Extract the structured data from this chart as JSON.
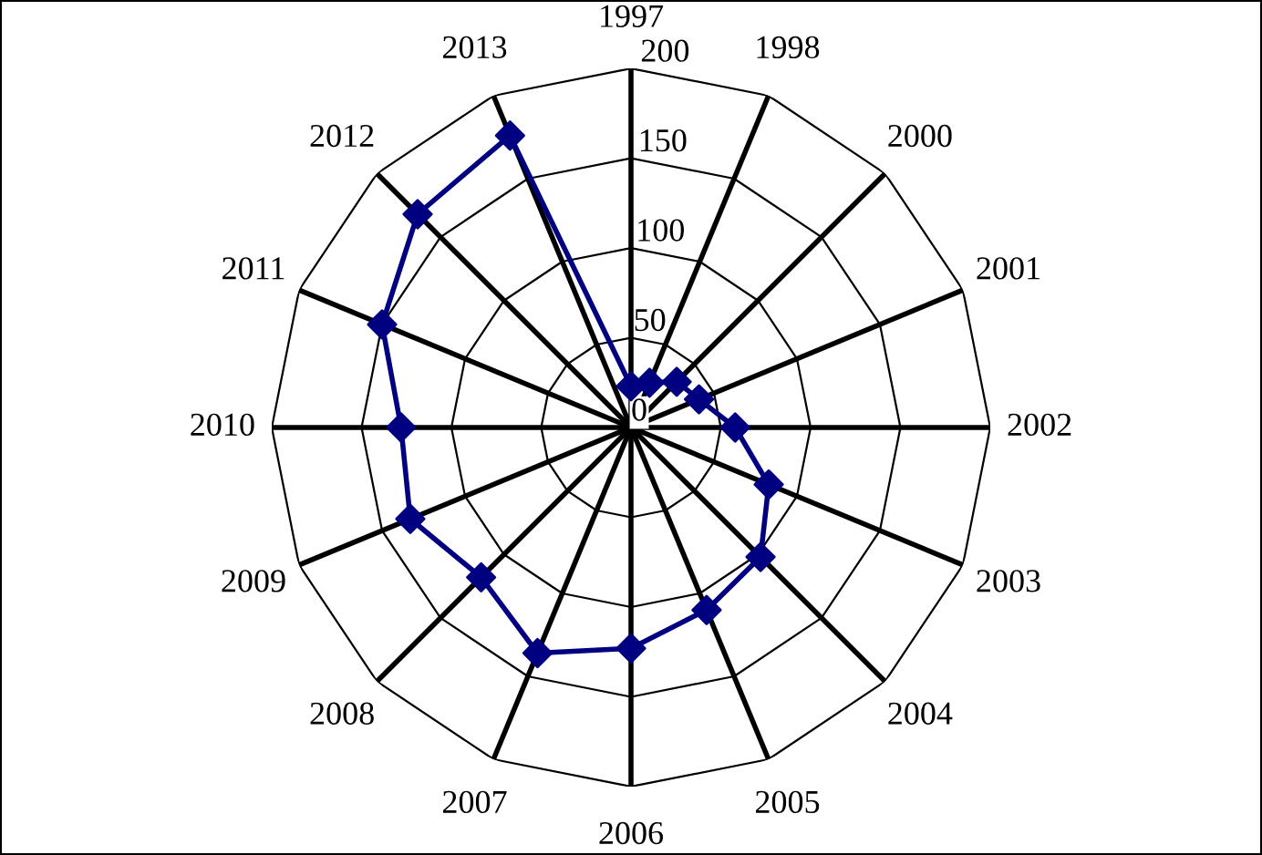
{
  "chart_data": {
    "type": "radar",
    "categories": [
      "1997",
      "1998",
      "2000",
      "2001",
      "2002",
      "2003",
      "2004",
      "2005",
      "2006",
      "2007",
      "2008",
      "2009",
      "2010",
      "2011",
      "2012",
      "2013"
    ],
    "series": [
      {
        "color": "#000080",
        "values": [
          23,
          27,
          36,
          41,
          58,
          83,
          102,
          110,
          123,
          136,
          118,
          133,
          128,
          150,
          168,
          176
        ]
      }
    ],
    "ylim": [
      0,
      200
    ],
    "yticks": [
      0,
      50,
      100,
      150,
      200
    ],
    "grid": true,
    "marker": "diamond",
    "line_style": "solid"
  }
}
